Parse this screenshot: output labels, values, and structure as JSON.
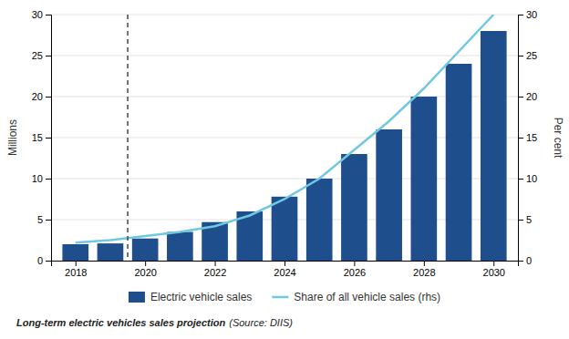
{
  "chart_data": {
    "type": "bar",
    "x": [
      2018,
      2019,
      2020,
      2021,
      2022,
      2023,
      2024,
      2025,
      2026,
      2027,
      2028,
      2029,
      2030
    ],
    "series": [
      {
        "name": "Electric vehicle sales",
        "type": "bar",
        "color": "#1F4E8C",
        "values": [
          2.0,
          2.1,
          2.7,
          3.5,
          4.7,
          6.0,
          7.8,
          10.0,
          13.0,
          16.0,
          20.0,
          24.0,
          28.0
        ]
      },
      {
        "name": "Share of all vehicle sales (rhs)",
        "type": "line",
        "axis": "y2",
        "color": "#70C8E2",
        "values": [
          2.2,
          2.5,
          3.0,
          3.5,
          4.2,
          5.5,
          7.5,
          10.0,
          13.5,
          17.0,
          21.0,
          25.5,
          30.0
        ]
      }
    ],
    "xlim": [
      2017.3,
      2030.7
    ],
    "xticks": [
      2018,
      2020,
      2022,
      2024,
      2026,
      2028,
      2030
    ],
    "ylim": [
      0,
      30
    ],
    "yticks": [
      0,
      5,
      10,
      15,
      20,
      25,
      30
    ],
    "y2lim": [
      0,
      30
    ],
    "y2ticks": [
      0,
      5,
      10,
      15,
      20,
      25,
      30
    ],
    "ylabel": "Millions",
    "y2label": "Per cent",
    "vline": {
      "x": 2019.5,
      "color": "#444444",
      "line_style": "dashed"
    },
    "grid": true,
    "legend": "bottom",
    "caption": "Long-term electric vehicles sales projection",
    "source": "(Source: DIIS)"
  }
}
